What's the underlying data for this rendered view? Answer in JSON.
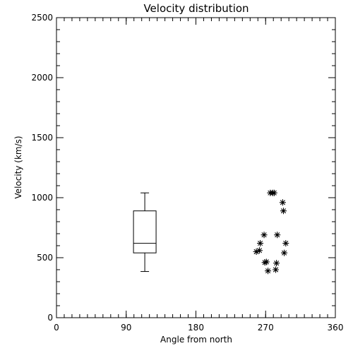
{
  "chart_data": {
    "type": "scatter",
    "title": "Velocity distribution",
    "xlabel": "Angle from north",
    "ylabel": "Velocity (km/s)",
    "xlim": [
      0,
      360
    ],
    "ylim": [
      0,
      2500
    ],
    "x_ticks": [
      0,
      90,
      180,
      270,
      360
    ],
    "y_ticks": [
      0,
      500,
      1000,
      1500,
      2000,
      2500
    ],
    "x_minor_step": 10,
    "y_minor_step": 100,
    "grid": false,
    "marker": "asterisk",
    "boxplot": {
      "x": 114,
      "min": 385,
      "q1": 540,
      "median": 620,
      "q3": 890,
      "max": 1040
    },
    "points": [
      {
        "x": 276,
        "y": 1040
      },
      {
        "x": 279,
        "y": 1040
      },
      {
        "x": 281,
        "y": 1040
      },
      {
        "x": 292,
        "y": 960
      },
      {
        "x": 293,
        "y": 890
      },
      {
        "x": 268,
        "y": 690
      },
      {
        "x": 285,
        "y": 690
      },
      {
        "x": 263,
        "y": 620
      },
      {
        "x": 296,
        "y": 620
      },
      {
        "x": 258,
        "y": 550
      },
      {
        "x": 262,
        "y": 560
      },
      {
        "x": 294,
        "y": 540
      },
      {
        "x": 269,
        "y": 460
      },
      {
        "x": 271,
        "y": 465
      },
      {
        "x": 284,
        "y": 455
      },
      {
        "x": 273,
        "y": 390
      },
      {
        "x": 283,
        "y": 400
      }
    ]
  }
}
